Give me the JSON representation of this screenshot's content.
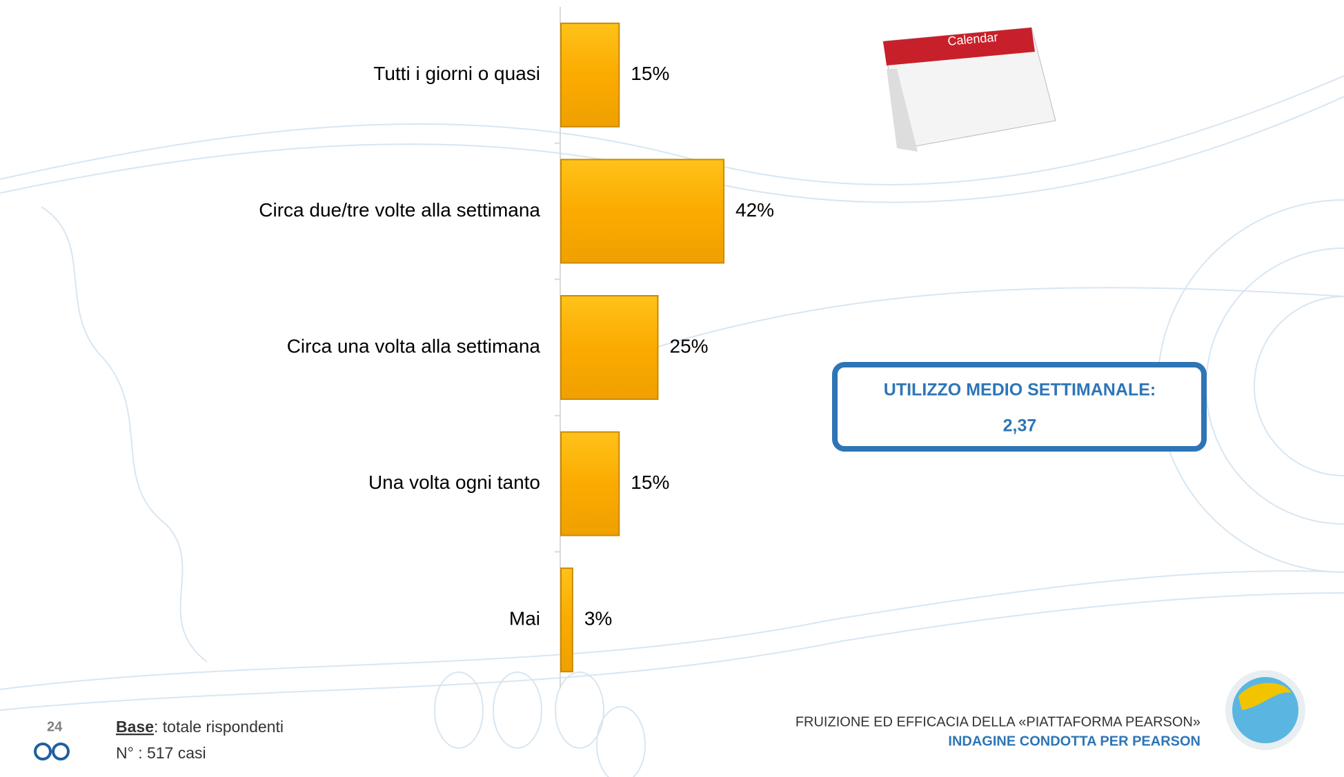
{
  "chart_data": {
    "type": "bar",
    "orientation": "horizontal",
    "categories": [
      "Tutti i giorni o quasi",
      "Circa due/tre volte alla settimana",
      "Circa una volta alla settimana",
      "Una volta ogni tanto",
      "Mai"
    ],
    "values": [
      15,
      42,
      25,
      15,
      3
    ],
    "value_labels": [
      "15%",
      "42%",
      "25%",
      "15%",
      "3%"
    ],
    "color": "#f7a90a"
  },
  "calendar": {
    "label": "Calendar"
  },
  "info_box": {
    "title": "UTILIZZO MEDIO SETTIMANALE:",
    "value": "2,37"
  },
  "footer": {
    "page": "24",
    "base_label": "Base",
    "base_text": ": totale rispondenti",
    "cases": "N° : 517 casi",
    "title": "FRUIZIONE ED EFFICACIA DELLA «PIATTAFORMA PEARSON»",
    "subtitle": "INDAGINE CONDOTTA PER PEARSON"
  }
}
